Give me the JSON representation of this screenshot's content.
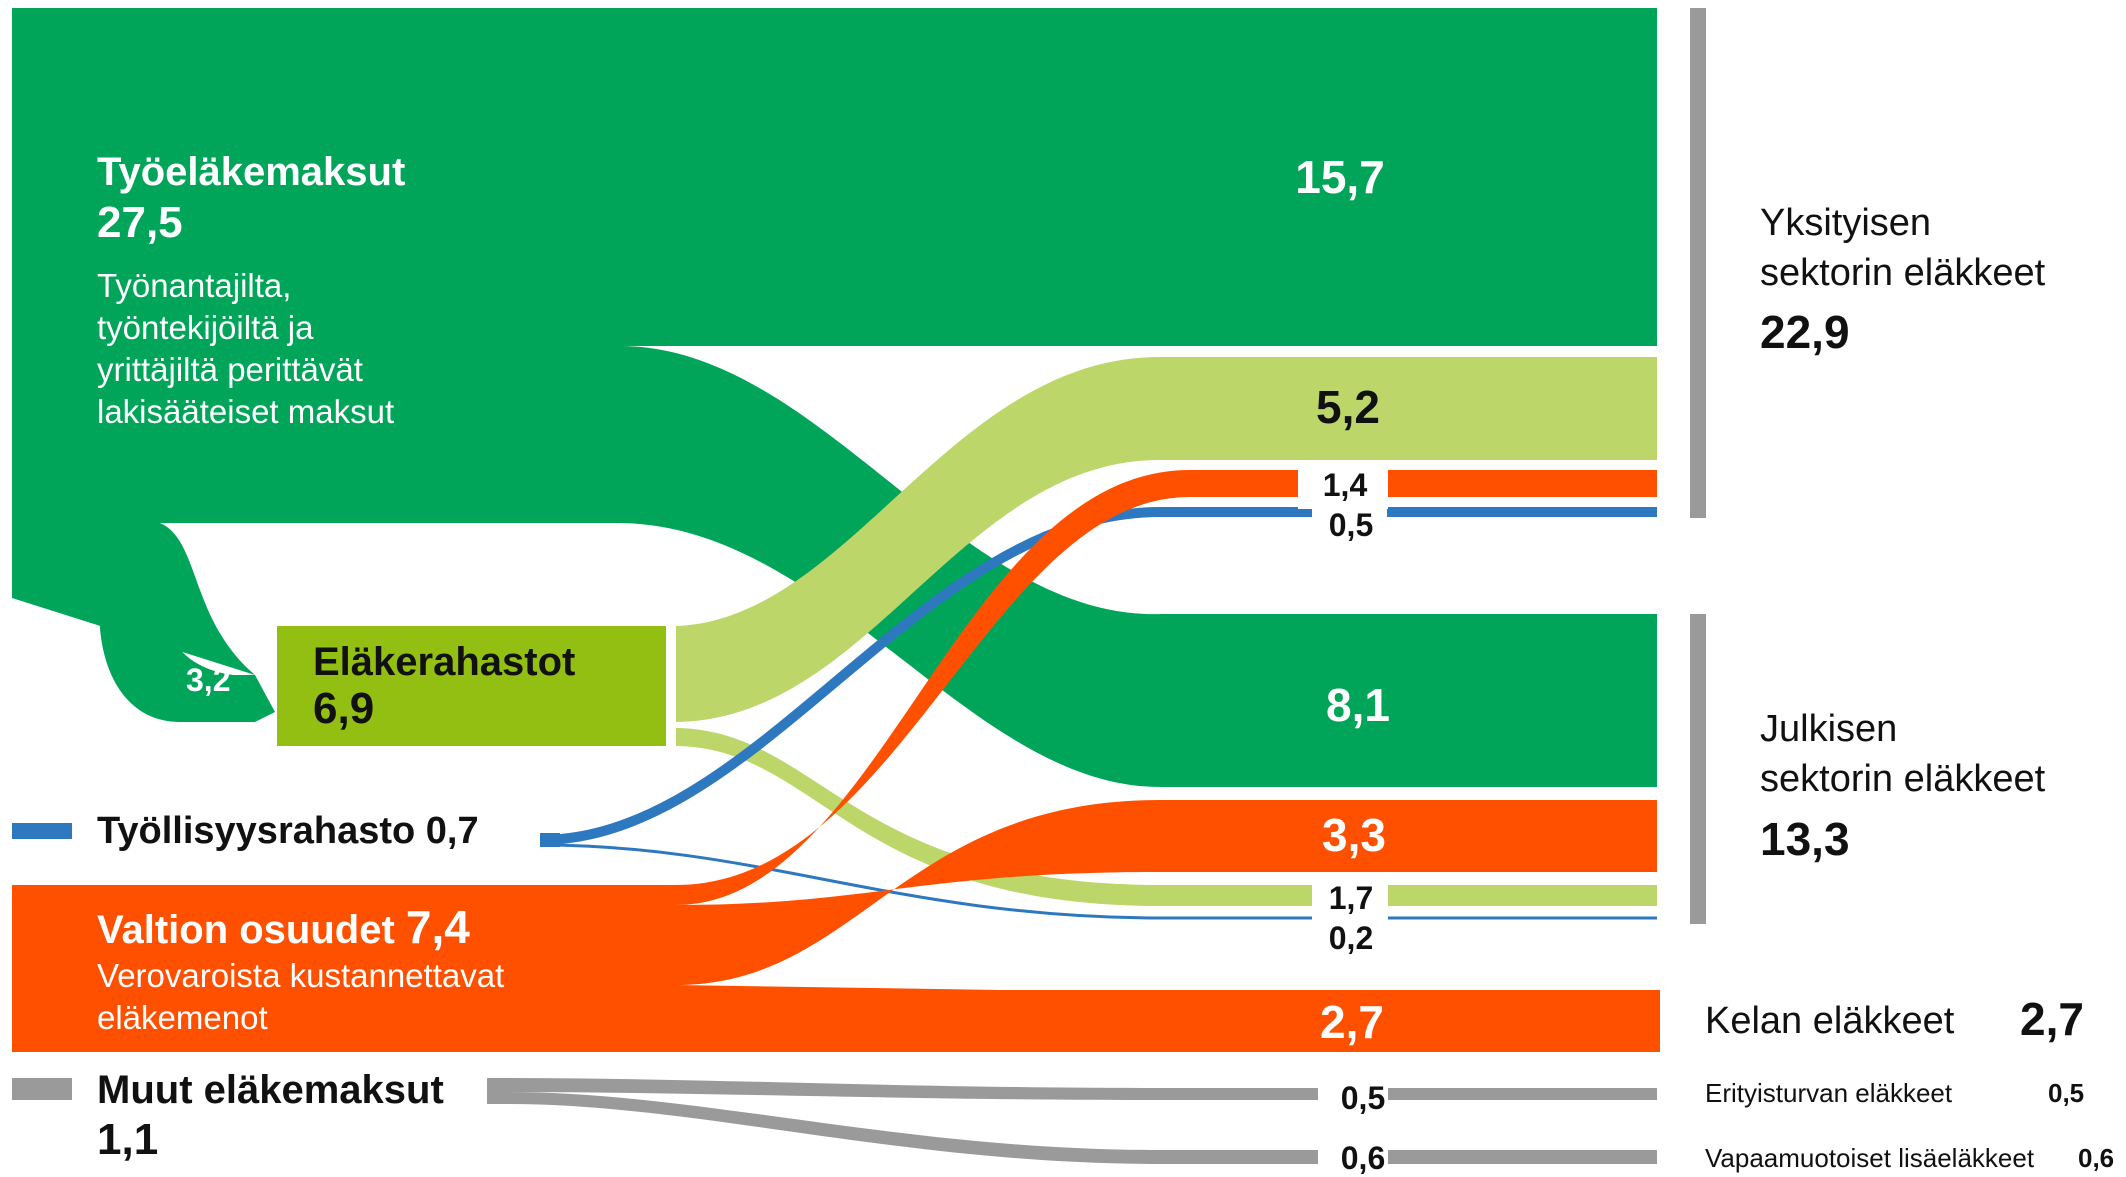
{
  "colors": {
    "dark_green": "#00a55a",
    "light_green": "#bcd66a",
    "olive_green": "#93bf13",
    "orange": "#ff5000",
    "blue": "#2e78c0",
    "gray": "#9a9a9a"
  },
  "sources": {
    "tyoelakemaksut": {
      "title": "Työeläkemaksut",
      "value": "27,5",
      "desc": [
        "Työnantajilta,",
        "työntekijöiltä ja",
        "yrittäjiltä perittävät",
        "lakisääteiset maksut"
      ]
    },
    "elakerahastot": {
      "title": "Eläkerahastot",
      "value": "6,9",
      "inflow": "3,2"
    },
    "tyollisyysrahasto": {
      "title": "Työllisyysrahasto",
      "value": "0,7"
    },
    "valtion_osuudet": {
      "title": "Valtion osuudet",
      "value": "7,4",
      "desc": [
        "Verovaroista kustannettavat",
        "eläkemenot"
      ]
    },
    "muut": {
      "title": "Muut eläkemaksut",
      "value": "1,1"
    }
  },
  "flows": {
    "private_tyo": "15,7",
    "private_rahasto": "5,2",
    "private_valtio": "1,4",
    "private_tyollisyys": "0,5",
    "public_tyo": "8,1",
    "public_valtio": "3,3",
    "public_rahasto": "1,7",
    "public_tyollisyys": "0,2",
    "kela_valtio": "2,7",
    "erityis_muut": "0,5",
    "vapaa_muut": "0,6"
  },
  "targets": {
    "private": {
      "line1": "Yksityisen",
      "line2": "sektorin eläkkeet",
      "value": "22,9"
    },
    "public": {
      "line1": "Julkisen",
      "line2": "sektorin eläkkeet",
      "value": "13,3"
    },
    "kela": {
      "label": "Kelan eläkkeet",
      "value": "2,7"
    },
    "erityis": {
      "label": "Erityisturvan eläkkeet",
      "value": "0,5"
    },
    "vapaa": {
      "label": "Vapaamuotoiset lisäeläkkeet",
      "value": "0,6"
    }
  }
}
